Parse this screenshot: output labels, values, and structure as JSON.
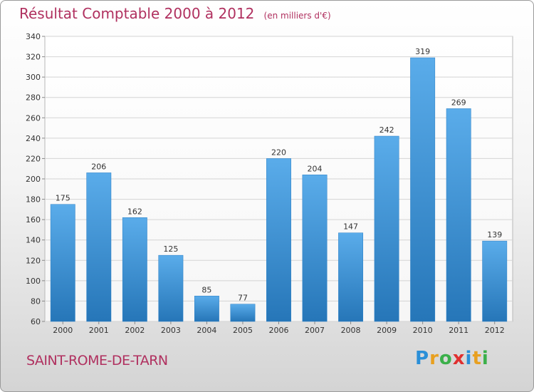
{
  "chart_data": {
    "type": "bar",
    "title": "Résultat Comptable 2000 à 2012",
    "subtitle": "(en milliers d'€)",
    "categories": [
      "2000",
      "2001",
      "2002",
      "2003",
      "2004",
      "2005",
      "2006",
      "2007",
      "2008",
      "2009",
      "2010",
      "2011",
      "2012"
    ],
    "values": [
      175,
      206,
      162,
      125,
      85,
      77,
      220,
      204,
      147,
      242,
      319,
      269,
      139
    ],
    "ylim": [
      60,
      340
    ],
    "yticks": [
      60,
      80,
      100,
      120,
      140,
      160,
      180,
      200,
      220,
      240,
      260,
      280,
      300,
      320,
      340
    ],
    "grid": true,
    "bar_color": "#3a8fd4"
  },
  "footer": {
    "commune": "SAINT-ROME-DE-TARN",
    "logo_letters": [
      "P",
      "r",
      "o",
      "x",
      "i",
      "t",
      "i"
    ],
    "logo_colors": [
      "#2a8fd8",
      "#e8a020",
      "#3bb04a",
      "#e03030",
      "#2a8fd8",
      "#e8a020",
      "#3bb04a"
    ]
  }
}
